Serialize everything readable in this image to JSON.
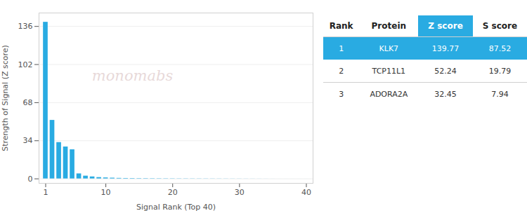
{
  "chart_data": {
    "type": "bar",
    "xlabel": "Signal Rank (Top 40)",
    "ylabel": "Strength of Signal (Z score)",
    "x": [
      1,
      2,
      3,
      4,
      5,
      6,
      7,
      8,
      9,
      10,
      11,
      12,
      13,
      14,
      15,
      16,
      17,
      18,
      19,
      20,
      21,
      22,
      23,
      24,
      25,
      26,
      27,
      28,
      29,
      30,
      31,
      32,
      33,
      34,
      35,
      36,
      37,
      38,
      39,
      40
    ],
    "values": [
      139.77,
      52.24,
      32.45,
      28.5,
      26.0,
      4.5,
      2.5,
      1.8,
      1.2,
      0.9,
      0.7,
      0.5,
      0.4,
      0.35,
      0.3,
      0.28,
      0.25,
      0.22,
      0.2,
      0.18,
      0.16,
      0.15,
      0.14,
      0.13,
      0.12,
      0.11,
      0.1,
      0.09,
      0.08,
      0.07,
      0.06,
      0.05,
      0.04,
      0.03,
      0.02,
      0.01,
      0.01,
      0.01,
      0.01,
      0.01
    ],
    "color": "#29abe2",
    "xlim": [
      0,
      41
    ],
    "xticks": [
      1,
      10,
      20,
      30,
      40
    ],
    "ylim": [
      -4,
      148
    ],
    "yticks": [
      0,
      34,
      68,
      102,
      136
    ],
    "grid": true,
    "annotations": [
      {
        "text": "monomabs"
      }
    ],
    "table": {
      "columns": [
        "Rank",
        "Protein",
        "Z score",
        "S score"
      ],
      "rows": [
        [
          1,
          "KLK7",
          139.77,
          87.52
        ],
        [
          2,
          "TCP11L1",
          52.24,
          19.79
        ],
        [
          3,
          "ADORA2A",
          32.45,
          7.94
        ]
      ],
      "highlight": [
        true,
        false,
        false
      ],
      "highlight_column": "Z score",
      "color": "#29abe2"
    }
  }
}
